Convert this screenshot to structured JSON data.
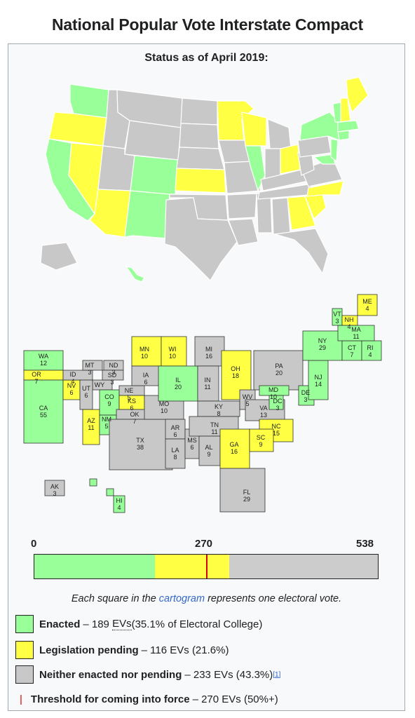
{
  "page": {
    "title": "National Popular Vote Interstate Compact",
    "status": "Status as of April 2019:",
    "caption_prefix": "Each square in the ",
    "caption_link": "cartogram",
    "caption_suffix": " represents one electoral vote."
  },
  "colors": {
    "enacted": "#99ff99",
    "pending": "#ffff44",
    "neither": "#c8c8c8",
    "threshold": "#dd0000"
  },
  "bar": {
    "min_label": "0",
    "mid_label": "270",
    "max_label": "538",
    "total": 538,
    "enacted": 189,
    "pending": 116,
    "threshold": 270
  },
  "legend": [
    {
      "bold": "Enacted",
      "text": " – 189 ",
      "ev": "EVs",
      "tail": " (35.1% of Electoral College)",
      "sup": "",
      "kind": "enacted"
    },
    {
      "bold": "Legislation pending",
      "text": " – 116 EVs (21.6%)",
      "ev": "",
      "tail": "",
      "sup": "",
      "kind": "pending"
    },
    {
      "bold": "Neither enacted nor pending",
      "text": " – 233 EVs (43.3%)",
      "ev": "",
      "tail": "",
      "sup": "[1]",
      "kind": "neither"
    },
    {
      "bold": "Threshold for coming into force",
      "text": " – 270 EVs (50%+)",
      "ev": "",
      "tail": "",
      "sup": "",
      "kind": "threshold"
    }
  ],
  "cartogram_labels": [
    {
      "state": "WA",
      "ev": "12",
      "status": "enacted"
    },
    {
      "state": "OR",
      "ev": "7",
      "status": "pending"
    },
    {
      "state": "CA",
      "ev": "55",
      "status": "enacted"
    },
    {
      "state": "NV",
      "ev": "6",
      "status": "pending"
    },
    {
      "state": "ID",
      "ev": "4",
      "status": "neither"
    },
    {
      "state": "MT",
      "ev": "3",
      "status": "neither"
    },
    {
      "state": "WY",
      "ev": "",
      "status": "neither"
    },
    {
      "state": "UT",
      "ev": "6",
      "status": "neither"
    },
    {
      "state": "AZ",
      "ev": "11",
      "status": "pending"
    },
    {
      "state": "CO",
      "ev": "9",
      "status": "enacted"
    },
    {
      "state": "NM",
      "ev": "5",
      "status": "enacted"
    },
    {
      "state": "ND",
      "ev": "3",
      "status": "neither"
    },
    {
      "state": "SD",
      "ev": "3",
      "status": "neither"
    },
    {
      "state": "NE",
      "ev": "5",
      "status": "neither"
    },
    {
      "state": "KS",
      "ev": "6",
      "status": "pending"
    },
    {
      "state": "OK",
      "ev": "7",
      "status": "neither"
    },
    {
      "state": "TX",
      "ev": "38",
      "status": "neither"
    },
    {
      "state": "MN",
      "ev": "10",
      "status": "pending"
    },
    {
      "state": "IA",
      "ev": "6",
      "status": "neither"
    },
    {
      "state": "MO",
      "ev": "10",
      "status": "neither"
    },
    {
      "state": "AR",
      "ev": "6",
      "status": "neither"
    },
    {
      "state": "LA",
      "ev": "8",
      "status": "neither"
    },
    {
      "state": "WI",
      "ev": "10",
      "status": "pending"
    },
    {
      "state": "IL",
      "ev": "20",
      "status": "enacted"
    },
    {
      "state": "MS",
      "ev": "6",
      "status": "neither"
    },
    {
      "state": "MI",
      "ev": "16",
      "status": "neither"
    },
    {
      "state": "IN",
      "ev": "11",
      "status": "neither"
    },
    {
      "state": "KY",
      "ev": "8",
      "status": "neither"
    },
    {
      "state": "TN",
      "ev": "11",
      "status": "neither"
    },
    {
      "state": "AL",
      "ev": "9",
      "status": "neither"
    },
    {
      "state": "OH",
      "ev": "18",
      "status": "pending"
    },
    {
      "state": "GA",
      "ev": "16",
      "status": "pending"
    },
    {
      "state": "FL",
      "ev": "29",
      "status": "neither"
    },
    {
      "state": "WV",
      "ev": "5",
      "status": "neither"
    },
    {
      "state": "VA",
      "ev": "13",
      "status": "neither"
    },
    {
      "state": "NC",
      "ev": "15",
      "status": "pending"
    },
    {
      "state": "SC",
      "ev": "9",
      "status": "pending"
    },
    {
      "state": "PA",
      "ev": "20",
      "status": "neither"
    },
    {
      "state": "MD",
      "ev": "10",
      "status": "enacted"
    },
    {
      "state": "DC",
      "ev": "3",
      "status": "enacted"
    },
    {
      "state": "DE",
      "ev": "3",
      "status": "enacted"
    },
    {
      "state": "NJ",
      "ev": "14",
      "status": "enacted"
    },
    {
      "state": "NY",
      "ev": "29",
      "status": "enacted"
    },
    {
      "state": "CT",
      "ev": "7",
      "status": "enacted"
    },
    {
      "state": "RI",
      "ev": "4",
      "status": "enacted"
    },
    {
      "state": "MA",
      "ev": "11",
      "status": "enacted"
    },
    {
      "state": "VT",
      "ev": "3",
      "status": "enacted"
    },
    {
      "state": "NH",
      "ev": "4",
      "status": "pending"
    },
    {
      "state": "ME",
      "ev": "4",
      "status": "pending"
    },
    {
      "state": "AK",
      "ev": "3",
      "status": "neither"
    },
    {
      "state": "HI",
      "ev": "4",
      "status": "enacted"
    }
  ]
}
